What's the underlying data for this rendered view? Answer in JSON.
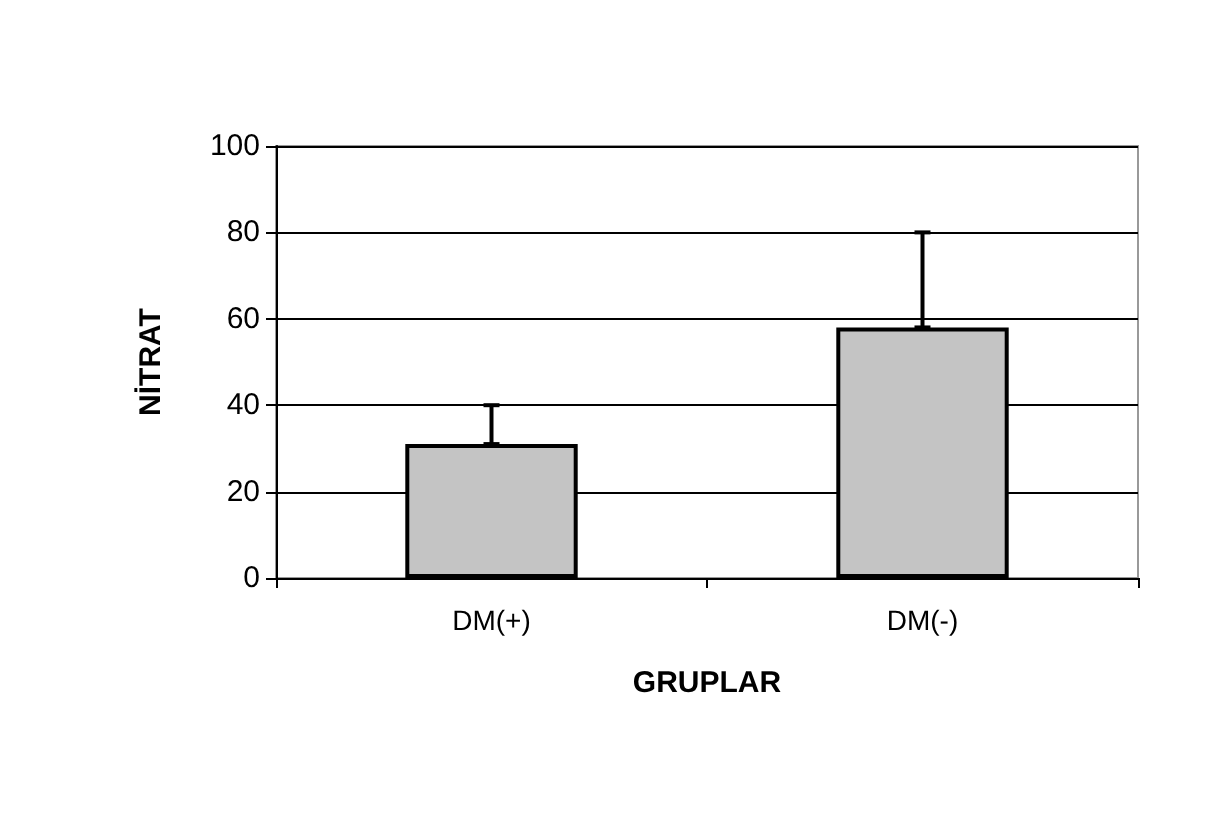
{
  "chart_data": {
    "type": "bar",
    "xlabel": "GRUPLAR",
    "ylabel": "NİTRAT",
    "categories": [
      "DM(+)",
      "DM(-)"
    ],
    "values": [
      31,
      58
    ],
    "color": "#c4c4c4",
    "errors": [
      [
        31,
        40
      ],
      [
        58,
        80
      ]
    ],
    "ylim": [
      0,
      100
    ],
    "yticks": [
      0,
      20,
      40,
      60,
      80,
      100
    ],
    "grid": "y"
  }
}
